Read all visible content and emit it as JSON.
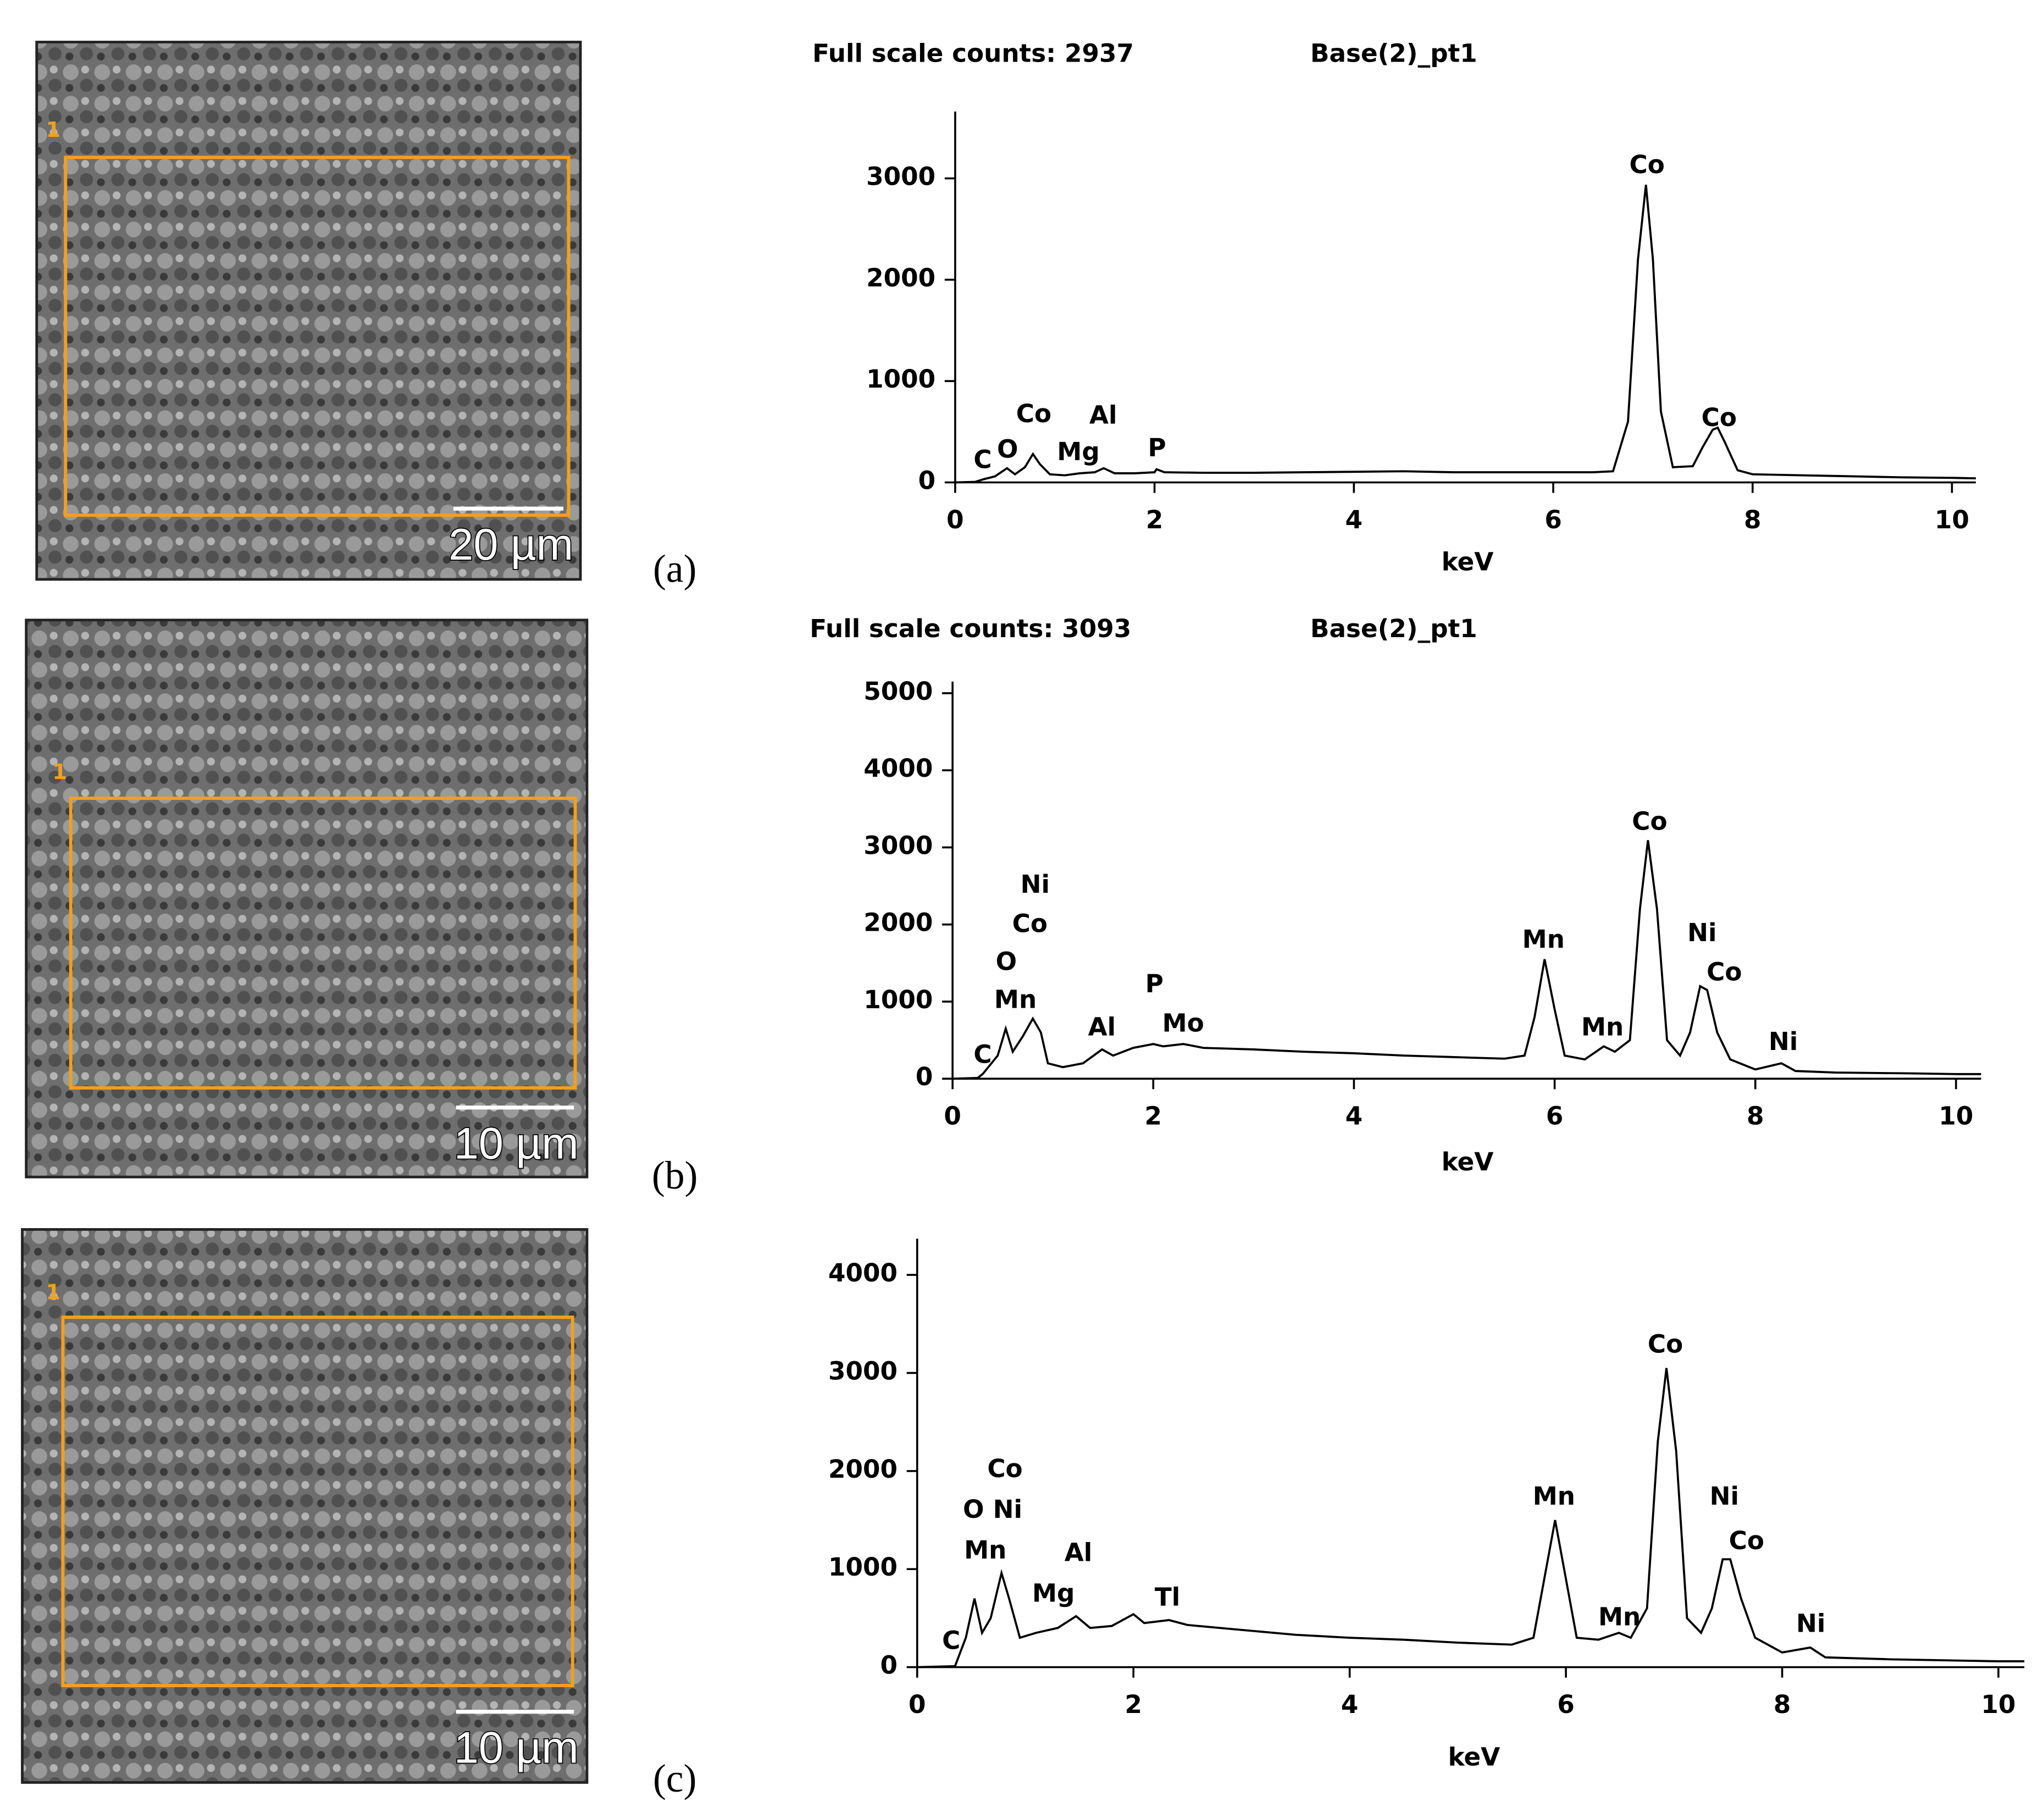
{
  "chart_data": [
    {
      "type": "line",
      "title": "Full scale counts: 2937",
      "subtitle": "Base(2)_pt1",
      "xlabel": "keV",
      "panel_label": "(a)",
      "scale_bar": "20 µm",
      "region_label": "1",
      "annotations": [
        "C",
        "O",
        "Co",
        "Mg",
        "Al",
        "P",
        "Co",
        "Co"
      ],
      "xlim": [
        0,
        10.24
      ],
      "xticks": [
        0,
        2,
        4,
        6,
        8,
        10
      ],
      "ylim": [
        0,
        3660
      ],
      "yticks": [
        0,
        1000,
        2000,
        3000
      ],
      "color": "#000000",
      "x": [
        0,
        0.2,
        0.28,
        0.4,
        0.52,
        0.6,
        0.7,
        0.78,
        0.85,
        0.95,
        1.1,
        1.25,
        1.4,
        1.49,
        1.6,
        1.8,
        2.0,
        2.02,
        2.1,
        2.5,
        3,
        3.5,
        4,
        4.5,
        5,
        5.5,
        6,
        6.4,
        6.6,
        6.75,
        6.85,
        6.93,
        7.0,
        7.08,
        7.2,
        7.4,
        7.5,
        7.6,
        7.65,
        7.72,
        7.85,
        8,
        8.5,
        9,
        9.5,
        10,
        10.24
      ],
      "values": [
        0,
        5,
        30,
        60,
        140,
        80,
        150,
        280,
        180,
        80,
        70,
        90,
        100,
        140,
        90,
        90,
        100,
        130,
        100,
        95,
        95,
        100,
        105,
        110,
        100,
        100,
        100,
        100,
        110,
        600,
        2200,
        2937,
        2200,
        700,
        150,
        160,
        350,
        520,
        540,
        400,
        120,
        80,
        70,
        60,
        50,
        45,
        40
      ]
    },
    {
      "type": "line",
      "title": "Full scale counts: 3093",
      "subtitle": "Base(2)_pt1",
      "xlabel": "keV",
      "panel_label": "(b)",
      "scale_bar": "10 µm",
      "region_label": "1",
      "annotations": [
        "C",
        "Mn",
        "O",
        "Co",
        "Ni",
        "Al",
        "P",
        "Mo",
        "Mn",
        "Mn",
        "Co",
        "Ni",
        "Co",
        "Ni"
      ],
      "xlim": [
        0,
        10.25
      ],
      "xticks": [
        0,
        2,
        4,
        6,
        8,
        10
      ],
      "ylim": [
        0,
        5150
      ],
      "yticks": [
        0,
        1000,
        2000,
        3000,
        4000,
        5000
      ],
      "color": "#000000",
      "x": [
        0,
        0.25,
        0.3,
        0.45,
        0.53,
        0.6,
        0.7,
        0.8,
        0.88,
        0.95,
        1.1,
        1.3,
        1.49,
        1.6,
        1.8,
        2.0,
        2.1,
        2.3,
        2.5,
        3,
        3.5,
        4,
        4.5,
        5,
        5.5,
        5.7,
        5.8,
        5.9,
        6.0,
        6.1,
        6.3,
        6.49,
        6.6,
        6.75,
        6.85,
        6.93,
        7.02,
        7.12,
        7.25,
        7.35,
        7.45,
        7.52,
        7.62,
        7.75,
        8,
        8.26,
        8.4,
        8.8,
        9.5,
        10,
        10.25
      ],
      "values": [
        0,
        10,
        60,
        300,
        650,
        350,
        550,
        780,
        600,
        200,
        150,
        200,
        380,
        300,
        400,
        450,
        420,
        450,
        400,
        380,
        350,
        330,
        300,
        280,
        260,
        300,
        800,
        1550,
        900,
        300,
        250,
        420,
        350,
        500,
        2200,
        3093,
        2200,
        500,
        300,
        600,
        1200,
        1150,
        600,
        250,
        120,
        200,
        100,
        80,
        70,
        60,
        60
      ]
    },
    {
      "type": "line",
      "xlabel": "keV",
      "panel_label": "(c)",
      "scale_bar": "10 µm",
      "region_label": "1",
      "annotations": [
        "C",
        "Mn",
        "O",
        "Ni",
        "Co",
        "Mg",
        "Al",
        "Tl",
        "Mn",
        "Mn",
        "Co",
        "Ni",
        "Co",
        "Ni"
      ],
      "xlim": [
        0,
        10.24
      ],
      "xticks": [
        0,
        2,
        4,
        6,
        8,
        10
      ],
      "ylim": [
        0,
        4370
      ],
      "yticks": [
        0,
        1000,
        2000,
        3000,
        4000
      ],
      "color": "#000000",
      "x": [
        0,
        0.35,
        0.45,
        0.53,
        0.6,
        0.68,
        0.78,
        0.85,
        0.95,
        1.1,
        1.3,
        1.47,
        1.6,
        1.8,
        2.0,
        2.1,
        2.33,
        2.5,
        3,
        3.5,
        4,
        4.5,
        5,
        5.5,
        5.7,
        5.8,
        5.9,
        6.0,
        6.1,
        6.3,
        6.49,
        6.6,
        6.75,
        6.85,
        6.93,
        7.02,
        7.12,
        7.25,
        7.35,
        7.45,
        7.52,
        7.62,
        7.75,
        8,
        8.26,
        8.4,
        9,
        9.5,
        10,
        10.24
      ],
      "values": [
        0,
        10,
        300,
        700,
        350,
        500,
        960,
        700,
        300,
        350,
        400,
        520,
        400,
        420,
        540,
        450,
        480,
        430,
        380,
        330,
        300,
        280,
        250,
        230,
        300,
        900,
        1500,
        900,
        300,
        280,
        350,
        300,
        600,
        2300,
        3050,
        2200,
        500,
        350,
        600,
        1100,
        1100,
        700,
        300,
        150,
        200,
        100,
        80,
        70,
        60,
        60
      ]
    }
  ]
}
